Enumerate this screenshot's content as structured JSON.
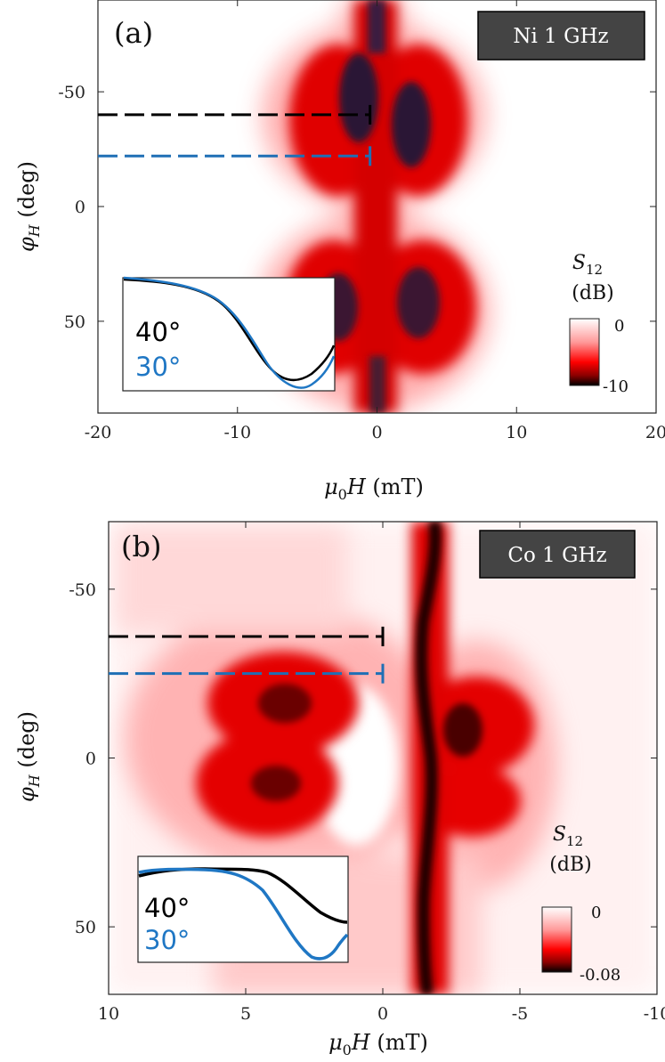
{
  "chart_data": [
    {
      "type": "heatmap",
      "panel_label": "(a)",
      "badge": "Ni 1 GHz",
      "xlabel": "μ0H (mT)",
      "ylabel": "φH (deg)",
      "xlim": [
        -20,
        20
      ],
      "ylim": [
        -90,
        90
      ],
      "y_reversed": true,
      "x_ticks": [
        -20,
        -10,
        0,
        10,
        20
      ],
      "x_tick_labels": [
        "-20",
        "-10",
        "0",
        "10",
        "20"
      ],
      "y_ticks": [
        -50,
        0,
        50
      ],
      "y_tick_labels": [
        "-50",
        "0",
        "50"
      ],
      "colorbar": {
        "title": "S12",
        "unit": "(dB)",
        "max_label": "0",
        "min_label": "-10",
        "range": [
          -10,
          0
        ]
      },
      "markers": [
        {
          "name": "40°",
          "angle": -40,
          "color": "#000000",
          "x_end": -0.5
        },
        {
          "name": "30°",
          "angle": -22,
          "color": "#1f6fb5",
          "x_end": -0.5
        }
      ],
      "inset": {
        "series": [
          {
            "name": "40°",
            "color": "#000000"
          },
          {
            "name": "30°",
            "color": "#1f77c4"
          }
        ]
      }
    },
    {
      "type": "heatmap",
      "panel_label": "(b)",
      "badge": "Co 1 GHz",
      "xlabel": "μ0H (mT)",
      "ylabel": "φH (deg)",
      "xlim": [
        10,
        -10
      ],
      "ylim": [
        -70,
        70
      ],
      "y_reversed": true,
      "x_ticks": [
        10,
        5,
        0,
        -5,
        -10
      ],
      "x_tick_labels": [
        "10",
        "5",
        "0",
        "-5",
        "-10"
      ],
      "y_ticks": [
        -50,
        0,
        50
      ],
      "y_tick_labels": [
        "-50",
        "0",
        "50"
      ],
      "colorbar": {
        "title": "S12",
        "unit": "(dB)",
        "max_label": "0",
        "min_label": "-0.08",
        "range": [
          -0.08,
          0
        ]
      },
      "markers": [
        {
          "name": "40°",
          "angle": -36,
          "color": "#000000",
          "x_end": 0
        },
        {
          "name": "30°",
          "angle": -25,
          "color": "#1f6fb5",
          "x_end": 0
        }
      ],
      "inset": {
        "series": [
          {
            "name": "40°",
            "color": "#000000"
          },
          {
            "name": "30°",
            "color": "#1f77c4"
          }
        ]
      }
    }
  ]
}
